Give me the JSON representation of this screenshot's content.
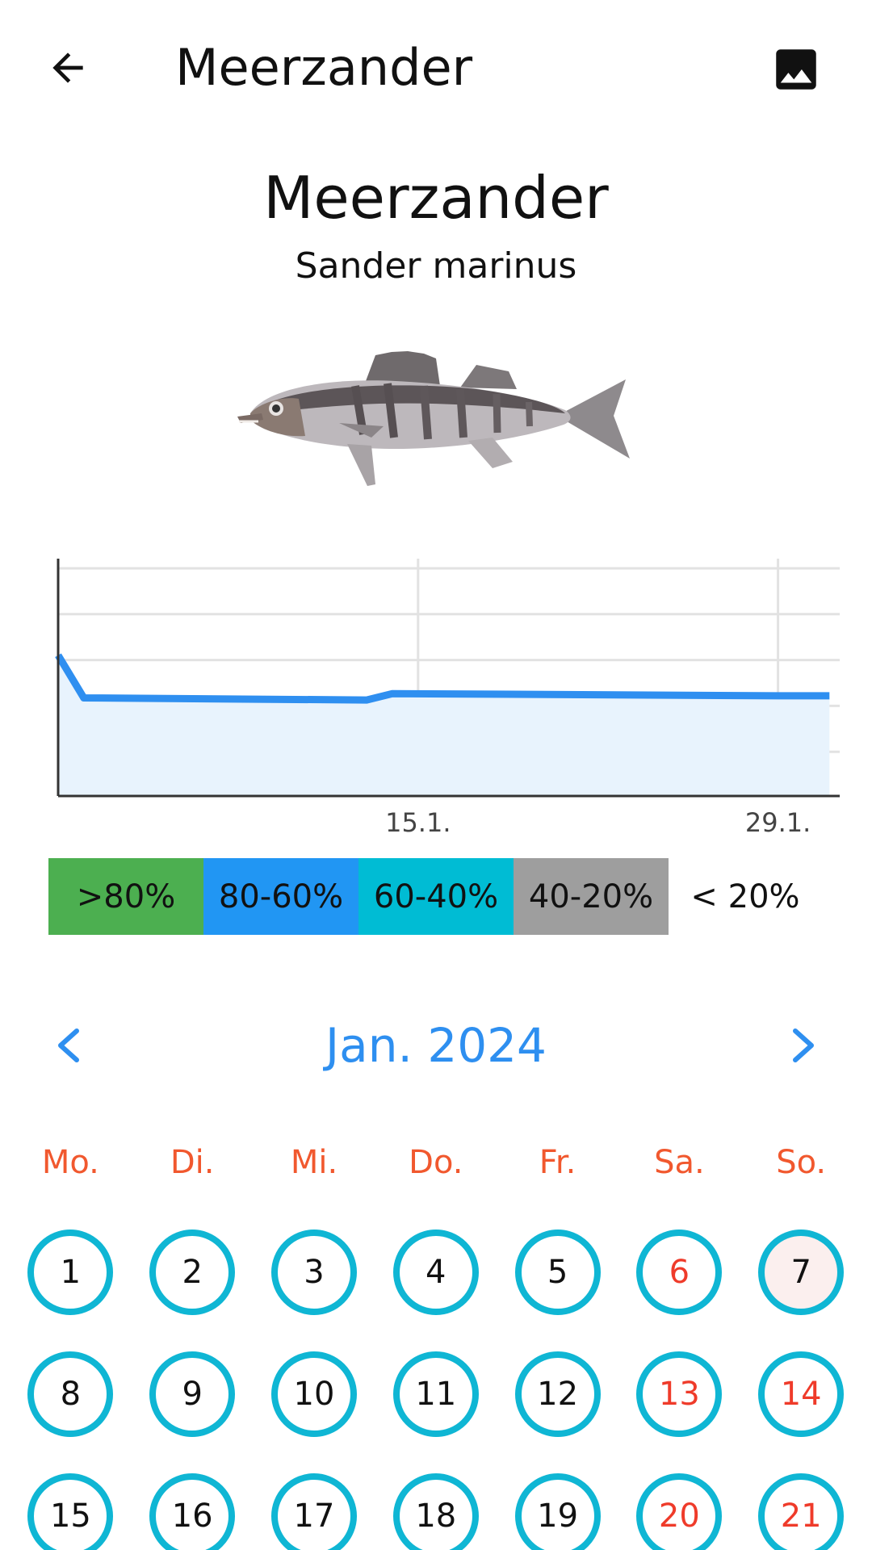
{
  "toolbar": {
    "title": "Meerzander",
    "back_icon": "arrow-left-icon",
    "image_icon": "image-icon"
  },
  "fish": {
    "name": "Meerzander",
    "latin_name": "Sander marinus"
  },
  "chart_data": {
    "type": "area",
    "x_tick_labels": [
      "15.1.",
      "29.1."
    ],
    "x": [
      "1.1.",
      "2.1.",
      "13.1.",
      "14.1.",
      "29.1.",
      "31.1."
    ],
    "values": [
      {
        "x": "1.1.",
        "y": 66
      },
      {
        "x": "2.1.",
        "y": 46
      },
      {
        "x": "13.1.",
        "y": 45
      },
      {
        "x": "14.1.",
        "y": 48
      },
      {
        "x": "29.1.",
        "y": 47
      },
      {
        "x": "31.1.",
        "y": 47
      }
    ],
    "ylim": [
      0,
      100
    ],
    "grid": true,
    "line_color": "#2f8ff0",
    "fill_color": "#e8f3fd"
  },
  "legend": [
    {
      "label": ">80%",
      "color": "#4caf50"
    },
    {
      "label": "80-60%",
      "color": "#2196f3"
    },
    {
      "label": "60-40%",
      "color": "#00bcd4"
    },
    {
      "label": "40-20%",
      "color": "#9e9e9e"
    },
    {
      "label": "< 20%",
      "color": "#ffffff"
    }
  ],
  "calendar": {
    "month_label": "Jan. 2024",
    "prev_icon": "chevron-left-icon",
    "next_icon": "chevron-right-icon",
    "weekdays": [
      "Mo.",
      "Di.",
      "Mi.",
      "Do.",
      "Fr.",
      "Sa.",
      "So."
    ],
    "days": [
      {
        "label": "1",
        "weekend": false,
        "today": false
      },
      {
        "label": "2",
        "weekend": false,
        "today": false
      },
      {
        "label": "3",
        "weekend": false,
        "today": false
      },
      {
        "label": "4",
        "weekend": false,
        "today": false
      },
      {
        "label": "5",
        "weekend": false,
        "today": false
      },
      {
        "label": "6",
        "weekend": true,
        "today": false
      },
      {
        "label": "7",
        "weekend": true,
        "today": true
      },
      {
        "label": "8",
        "weekend": false,
        "today": false
      },
      {
        "label": "9",
        "weekend": false,
        "today": false
      },
      {
        "label": "10",
        "weekend": false,
        "today": false
      },
      {
        "label": "11",
        "weekend": false,
        "today": false
      },
      {
        "label": "12",
        "weekend": false,
        "today": false
      },
      {
        "label": "13",
        "weekend": true,
        "today": false
      },
      {
        "label": "14",
        "weekend": true,
        "today": false
      },
      {
        "label": "15",
        "weekend": false,
        "today": false
      },
      {
        "label": "16",
        "weekend": false,
        "today": false
      },
      {
        "label": "17",
        "weekend": false,
        "today": false
      },
      {
        "label": "18",
        "weekend": false,
        "today": false
      },
      {
        "label": "19",
        "weekend": false,
        "today": false
      },
      {
        "label": "20",
        "weekend": true,
        "today": false
      },
      {
        "label": "21",
        "weekend": true,
        "today": false
      }
    ],
    "ring_color": "#0fb6d4",
    "weekend_color": "#ef3b2a",
    "weekday_header_color": "#f1582e",
    "accent_color": "#2e8ff0"
  }
}
